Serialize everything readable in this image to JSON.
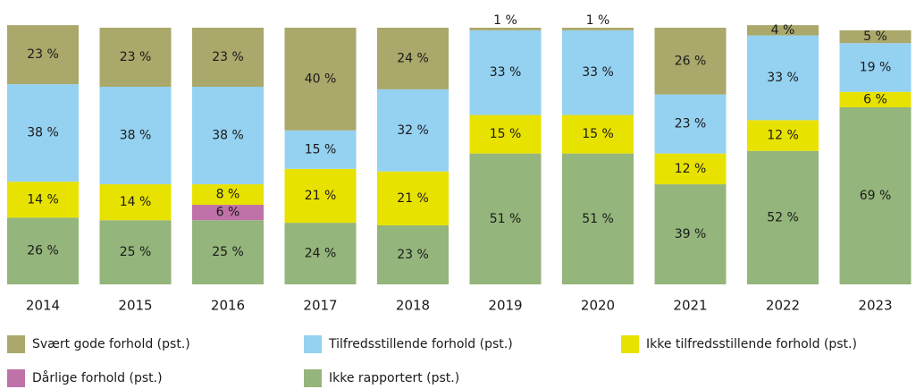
{
  "chart_data": {
    "type": "stacked_bar",
    "categories": [
      "2014",
      "2015",
      "2016",
      "2017",
      "2018",
      "2019",
      "2020",
      "2021",
      "2022",
      "2023"
    ],
    "series": [
      {
        "name": "Svært gode forhold (pst.)",
        "color": "#aaa86a",
        "values": [
          23,
          23,
          23,
          40,
          24,
          1,
          1,
          26,
          4,
          5
        ],
        "value_labels": [
          "23 %",
          "23 %",
          "23 %",
          "40 %",
          "24 %",
          "1 %",
          "1 %",
          "26 %",
          "4 %",
          "5 %"
        ]
      },
      {
        "name": "Tilfredsstillende forhold (pst.)",
        "color": "#95d1f1",
        "values": [
          38,
          38,
          38,
          15,
          32,
          33,
          33,
          23,
          33,
          19
        ],
        "value_labels": [
          "38 %",
          "38 %",
          "38 %",
          "15 %",
          "32 %",
          "33 %",
          "33 %",
          "23 %",
          "33 %",
          "19 %"
        ]
      },
      {
        "name": "Ikke tilfredsstillende forhold (pst.)",
        "color": "#e8e200",
        "values": [
          14,
          14,
          8,
          21,
          21,
          15,
          15,
          12,
          12,
          6
        ],
        "value_labels": [
          "14 %",
          "14 %",
          "8 %",
          "21 %",
          "21 %",
          "15 %",
          "15 %",
          "12 %",
          "12 %",
          "6 %"
        ]
      },
      {
        "name": "Dårlige forhold (pst.)",
        "color": "#bf72a8",
        "values": [
          null,
          null,
          6,
          null,
          null,
          null,
          null,
          null,
          null,
          null
        ],
        "value_labels": [
          null,
          null,
          "6 %",
          null,
          null,
          null,
          null,
          null,
          null,
          null
        ]
      },
      {
        "name": "Ikke rapportert (pst.)",
        "color": "#94b57b",
        "values": [
          26,
          25,
          25,
          24,
          23,
          51,
          51,
          39,
          52,
          69
        ],
        "value_labels": [
          "26 %",
          "25 %",
          "25 %",
          "24 %",
          "23 %",
          "51 %",
          "51 %",
          "39 %",
          "52 %",
          "69 %"
        ]
      }
    ]
  }
}
